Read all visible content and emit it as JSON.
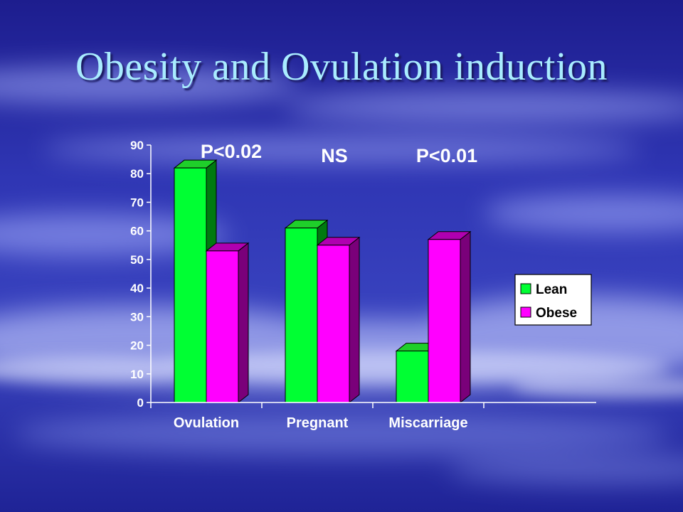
{
  "slide": {
    "title": "Obesity and Ovulation induction"
  },
  "chart_data": {
    "type": "bar",
    "categories": [
      "Ovulation",
      "Pregnant",
      "Miscarriage"
    ],
    "series": [
      {
        "name": "Lean",
        "values": [
          82,
          61,
          18
        ],
        "color": "#00ff33",
        "side_color": "#007a10",
        "top_color": "#1fcf2a"
      },
      {
        "name": "Obese",
        "values": [
          53,
          55,
          57
        ],
        "color": "#ff00ff",
        "side_color": "#7a007a",
        "top_color": "#b000b0"
      }
    ],
    "annotations": [
      "P<0.02",
      "NS",
      "P<0.01"
    ],
    "ylim": [
      0,
      90
    ],
    "yticks": [
      0,
      10,
      20,
      30,
      40,
      50,
      60,
      70,
      80,
      90
    ],
    "grid": false,
    "legend_position": "right",
    "style": "3d-bar"
  }
}
